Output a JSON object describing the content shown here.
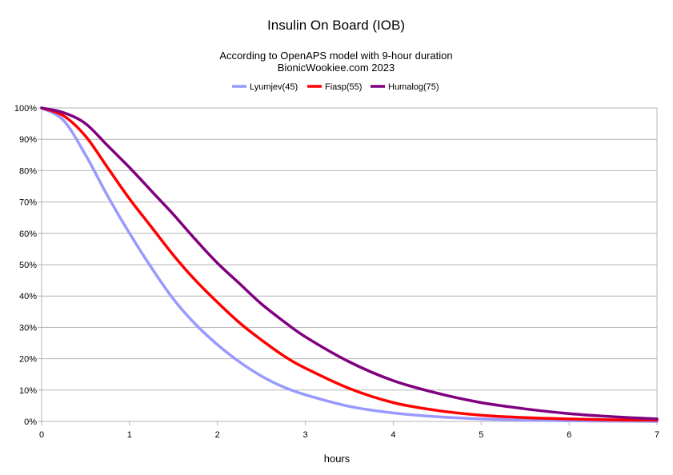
{
  "chart_data": {
    "type": "line",
    "title": "Insulin On Board (IOB)",
    "subtitle_lines": [
      "According to OpenAPS model with 9-hour duration",
      "BionicWookiee.com 2023"
    ],
    "xlabel": "hours",
    "ylabel": "",
    "xlim": [
      0,
      7
    ],
    "ylim": [
      0,
      1
    ],
    "x_ticks": [
      0,
      1,
      2,
      3,
      4,
      5,
      6,
      7
    ],
    "x_tick_labels": [
      "0",
      "1",
      "2",
      "3",
      "4",
      "5",
      "6",
      "7"
    ],
    "y_ticks": [
      0,
      0.1,
      0.2,
      0.3,
      0.4,
      0.5,
      0.6,
      0.7,
      0.8,
      0.9,
      1.0
    ],
    "y_tick_labels": [
      "0%",
      "10%",
      "20%",
      "30%",
      "40%",
      "50%",
      "60%",
      "70%",
      "80%",
      "90%",
      "100%"
    ],
    "grid": "horizontal",
    "legend": "top-center",
    "x": [
      0,
      0.25,
      0.5,
      0.75,
      1,
      1.25,
      1.5,
      1.75,
      2,
      2.25,
      2.5,
      2.75,
      3,
      3.5,
      4,
      4.5,
      5,
      5.5,
      6,
      6.5,
      7
    ],
    "series": [
      {
        "name": "Lyumjev(45)",
        "color": "#9999ff",
        "values": [
          1.0,
          0.96,
          0.85,
          0.72,
          0.6,
          0.49,
          0.39,
          0.31,
          0.245,
          0.19,
          0.145,
          0.11,
          0.085,
          0.048,
          0.027,
          0.015,
          0.008,
          0.004,
          0.002,
          0.001,
          0.0
        ]
      },
      {
        "name": "Fiasp(55)",
        "color": "#ff0000",
        "values": [
          1.0,
          0.975,
          0.91,
          0.81,
          0.71,
          0.62,
          0.53,
          0.45,
          0.38,
          0.315,
          0.26,
          0.21,
          0.17,
          0.105,
          0.06,
          0.035,
          0.02,
          0.012,
          0.008,
          0.005,
          0.004
        ]
      },
      {
        "name": "Humalog(75)",
        "color": "#800080",
        "values": [
          1.0,
          0.985,
          0.95,
          0.88,
          0.81,
          0.735,
          0.66,
          0.58,
          0.505,
          0.44,
          0.375,
          0.32,
          0.27,
          0.19,
          0.13,
          0.09,
          0.06,
          0.04,
          0.025,
          0.015,
          0.008
        ]
      }
    ]
  }
}
